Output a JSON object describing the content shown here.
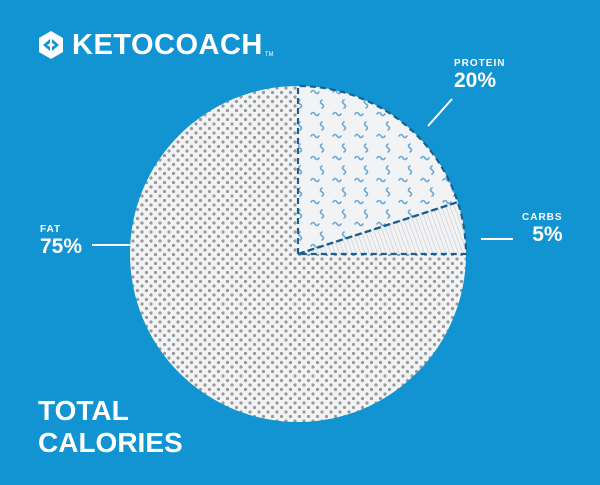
{
  "brand": {
    "name": "KETOCOACH",
    "trademark": "TM"
  },
  "chart_data": {
    "type": "pie",
    "title": "TOTAL CALORIES",
    "slices": [
      {
        "label": "FAT",
        "value": 75,
        "display": "75%"
      },
      {
        "label": "PROTEIN",
        "value": 20,
        "display": "20%"
      },
      {
        "label": "CARBS",
        "value": 5,
        "display": "5%"
      }
    ]
  },
  "footer": {
    "title_line1": "TOTAL",
    "title_line2": "CALORIES"
  },
  "colors": {
    "background": "#1294d3",
    "pie_fill": "#f2f3f5",
    "fat_dots": "#9a9a9a",
    "protein_squiggle": "#6aa9d6",
    "carbs_lines": "#c9c9c9",
    "dashed_outline": "#1a5f8e",
    "label_text": "#ffffff"
  }
}
